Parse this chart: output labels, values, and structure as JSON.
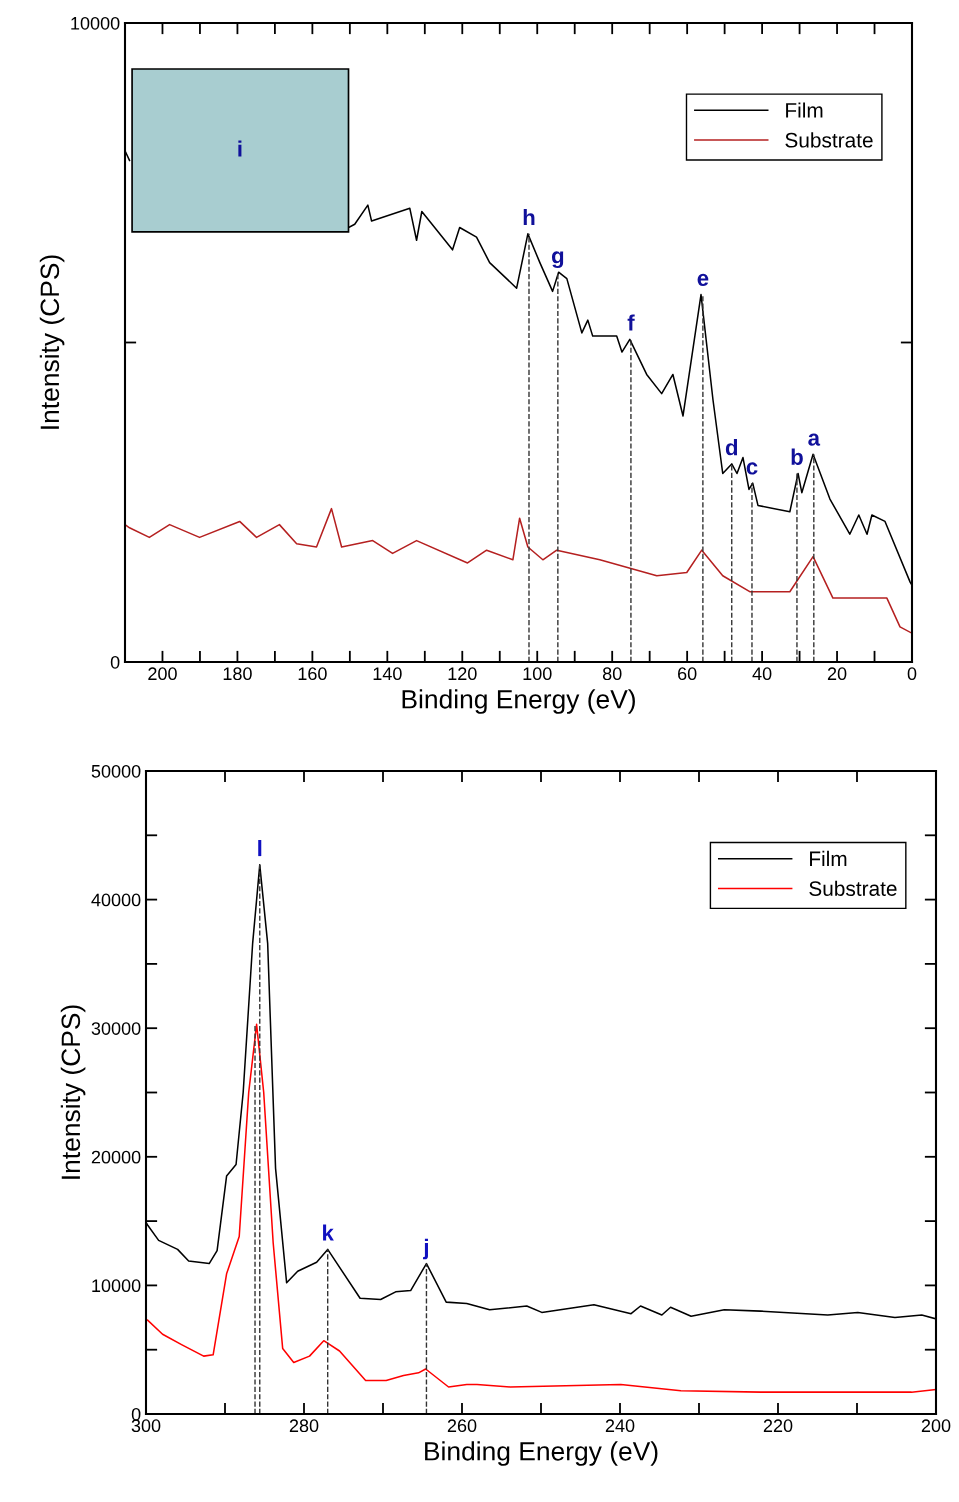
{
  "chart_data": [
    {
      "type": "line",
      "xlabel": "Binding Energy (eV)",
      "ylabel": "Intensity (CPS)",
      "xlim": [
        210,
        0
      ],
      "ylim": [
        0,
        10000
      ],
      "xticks": [
        200,
        {
          "value": 190,
          "label": null
        },
        180,
        {
          "value": 170,
          "label": null
        },
        160,
        {
          "value": 150,
          "label": null
        },
        140,
        {
          "value": 130,
          "label": null
        },
        120,
        {
          "value": 110,
          "label": null
        },
        100,
        {
          "value": 90,
          "label": null
        },
        80,
        {
          "value": 70,
          "label": null
        },
        60,
        {
          "value": 50,
          "label": null
        },
        40,
        {
          "value": 30,
          "label": null
        },
        20,
        {
          "value": 10,
          "label": null
        },
        0
      ],
      "yticks": [
        0,
        {
          "value": 5000,
          "label": null
        },
        10000
      ],
      "grid": false,
      "legend": "top right",
      "series": [
        {
          "name": "Film",
          "color": "#000000",
          "x": [
            210,
            208.8,
            208.3,
            150.3,
            148.7,
            145.2,
            144.2,
            134.0,
            132.2,
            130.8,
            122.6,
            120.7,
            116.2,
            112.7,
            105.5,
            102.5,
            99.3,
            95.9,
            94.3,
            92.1,
            88.1,
            86.5,
            85.2,
            78.8,
            77.4,
            75.3,
            70.8,
            66.8,
            63.8,
            61.1,
            56.3,
            53.1,
            50.5,
            48.1,
            46.7,
            45.1,
            43.5,
            42.5,
            41.1,
            32.6,
            30.4,
            29.4,
            26.4,
            21.9,
            16.6,
            14.2,
            12.0,
            10.7,
            7.2,
            0.5,
            0
          ],
          "values": [
            8000,
            7850,
            null,
            6800,
            6850,
            7150,
            6900,
            7100,
            6600,
            7050,
            6450,
            6800,
            6650,
            6250,
            5850,
            6700,
            6250,
            5800,
            6100,
            6000,
            5150,
            5350,
            5100,
            5100,
            4850,
            5050,
            4500,
            4200,
            4500,
            3850,
            5750,
            4100,
            2950,
            3100,
            2950,
            3200,
            2700,
            2800,
            2450,
            2350,
            2950,
            2650,
            3250,
            2550,
            2000,
            2300,
            2000,
            2300,
            2200,
            1250,
            1200
          ]
        },
        {
          "name": "Substrate",
          "color": "#b52020",
          "x": [
            210,
            208.8,
            203.5,
            198.1,
            190.1,
            179.4,
            174.9,
            168.8,
            164.2,
            158.9,
            154.9,
            152.2,
            143.9,
            138.6,
            132.2,
            118.6,
            113.5,
            106.5,
            104.7,
            102.5,
            98.5,
            94.8,
            83.3,
            68.1,
            60.1,
            56.1,
            50.5,
            43.3,
            32.6,
            26.4,
            21.1,
            6.7,
            3.2,
            0
          ],
          "values": [
            2150,
            2100,
            1950,
            2150,
            1950,
            2200,
            1950,
            2150,
            1850,
            1800,
            2400,
            1800,
            1900,
            1700,
            1900,
            1550,
            1750,
            1600,
            2250,
            1800,
            1600,
            1750,
            1600,
            1350,
            1400,
            1750,
            1350,
            1100,
            1100,
            1650,
            1000,
            1000,
            550,
            450
          ]
        },
        {
          "color": "#333333",
          "line_style": "dashed",
          "x": [
            102.2,
            102.2
          ],
          "values": [
            0,
            6700
          ]
        },
        {
          "color": "#333333",
          "line_style": "dashed",
          "x": [
            94.5,
            94.5
          ],
          "values": [
            0,
            6100
          ]
        },
        {
          "color": "#333333",
          "line_style": "dashed",
          "x": [
            75.0,
            75.0
          ],
          "values": [
            0,
            5050
          ]
        },
        {
          "color": "#333333",
          "line_style": "dashed",
          "x": [
            55.8,
            55.8
          ],
          "values": [
            0,
            5750
          ]
        },
        {
          "color": "#333333",
          "line_style": "dashed",
          "x": [
            48.1,
            48.1
          ],
          "values": [
            0,
            3100
          ]
        },
        {
          "color": "#333333",
          "line_style": "dashed",
          "x": [
            42.7,
            42.7
          ],
          "values": [
            0,
            2800
          ]
        },
        {
          "color": "#333333",
          "line_style": "dashed",
          "x": [
            30.7,
            30.7
          ],
          "values": [
            0,
            2950
          ]
        },
        {
          "color": "#333333",
          "line_style": "dashed",
          "x": [
            26.2,
            26.2
          ],
          "values": [
            0,
            3250
          ]
        }
      ],
      "annotations": [
        {
          "text": "h",
          "x": 102.2,
          "y": 6700
        },
        {
          "text": "g",
          "x": 94.5,
          "y": 6100
        },
        {
          "text": "f",
          "x": 75.0,
          "y": 5050
        },
        {
          "text": "e",
          "x": 55.8,
          "y": 5750
        },
        {
          "text": "d",
          "x": 48.1,
          "y": 3100
        },
        {
          "text": "c",
          "x": 42.7,
          "y": 2800
        },
        {
          "text": "b",
          "x": 30.7,
          "y": 2950
        },
        {
          "text": "a",
          "x": 26.2,
          "y": 3250
        },
        "i"
      ]
    },
    {
      "type": "line",
      "xlabel": "Binding Energy (eV)",
      "ylabel": "Intensity (CPS)",
      "xlim": [
        300,
        200
      ],
      "ylim": [
        0,
        50000
      ],
      "xticks": [
        300,
        {
          "value": 290,
          "label": null
        },
        280,
        {
          "value": 270,
          "label": null
        },
        260,
        {
          "value": 250,
          "label": null
        },
        240,
        {
          "value": 230,
          "label": null
        },
        220,
        {
          "value": 210,
          "label": null
        },
        200
      ],
      "yticks": [
        0,
        {
          "value": 5000,
          "label": null
        },
        10000,
        {
          "value": 15000,
          "label": null
        },
        20000,
        {
          "value": 25000,
          "label": null
        },
        30000,
        {
          "value": 35000,
          "label": null
        },
        40000,
        {
          "value": 45000,
          "label": null
        },
        50000
      ],
      "grid": false,
      "legend": "top right",
      "series": [
        {
          "name": "Film",
          "color": "#000000",
          "x": [
            300,
            299.8,
            298.4,
            296.0,
            294.6,
            292.0,
            291.0,
            289.8,
            288.6,
            287.7,
            286.5,
            285.6,
            284.6,
            283.6,
            282.2,
            280.8,
            278.4,
            277.0,
            272.9,
            270.3,
            268.4,
            266.5,
            264.5,
            262.0,
            259.4,
            256.5,
            251.8,
            249.9,
            243.3,
            238.6,
            237.4,
            234.7,
            233.6,
            231.0,
            226.8,
            222.2,
            213.7,
            209.9,
            205.2,
            201.8,
            200
          ],
          "values": [
            14900,
            14700,
            13500,
            12800,
            11900,
            11700,
            12700,
            18500,
            19400,
            25000,
            36600,
            42700,
            36600,
            19100,
            10200,
            11100,
            11800,
            12800,
            9000,
            8900,
            9500,
            9600,
            11700,
            8700,
            8600,
            8100,
            8400,
            7900,
            8500,
            7800,
            8400,
            7700,
            8300,
            7600,
            8100,
            8000,
            7700,
            7900,
            7500,
            7700,
            7400
          ]
        },
        {
          "name": "Substrate",
          "color": "#ff0000",
          "x": [
            300,
            299.8,
            297.9,
            295.5,
            292.7,
            291.5,
            289.8,
            288.2,
            287.0,
            286.0,
            285.1,
            283.9,
            282.7,
            281.3,
            279.3,
            277.5,
            275.5,
            272.2,
            269.6,
            267.4,
            265.5,
            264.6,
            261.7,
            259.4,
            258.1,
            253.9,
            239.9,
            232.3,
            222.2,
            203.1,
            200
          ],
          "values": [
            7300,
            7300,
            6200,
            5400,
            4500,
            4600,
            10900,
            13800,
            25000,
            30300,
            25000,
            13300,
            5100,
            4000,
            4500,
            5700,
            4900,
            2600,
            2600,
            3000,
            3200,
            3500,
            2100,
            2300,
            2300,
            2100,
            2300,
            1800,
            1700,
            1700,
            1900
          ]
        },
        {
          "color": "#333333",
          "line_style": "dashed",
          "x": [
            285.6,
            285.6
          ],
          "values": [
            0,
            42700
          ]
        },
        {
          "color": "#333333",
          "line_style": "dashed",
          "x": [
            286.2,
            286.2
          ],
          "values": [
            0,
            30300
          ]
        },
        {
          "color": "#333333",
          "line_style": "dashed",
          "x": [
            277.0,
            277.0
          ],
          "values": [
            0,
            12800
          ]
        },
        {
          "color": "#333333",
          "line_style": "dashed",
          "x": [
            264.5,
            264.5
          ],
          "values": [
            0,
            11700
          ]
        }
      ],
      "annotations": [
        {
          "text": "l",
          "x": 285.6,
          "y": 42700
        },
        {
          "text": "k",
          "x": 277.0,
          "y": 12800
        },
        {
          "text": "j",
          "x": 264.5,
          "y": 11700
        }
      ]
    }
  ]
}
